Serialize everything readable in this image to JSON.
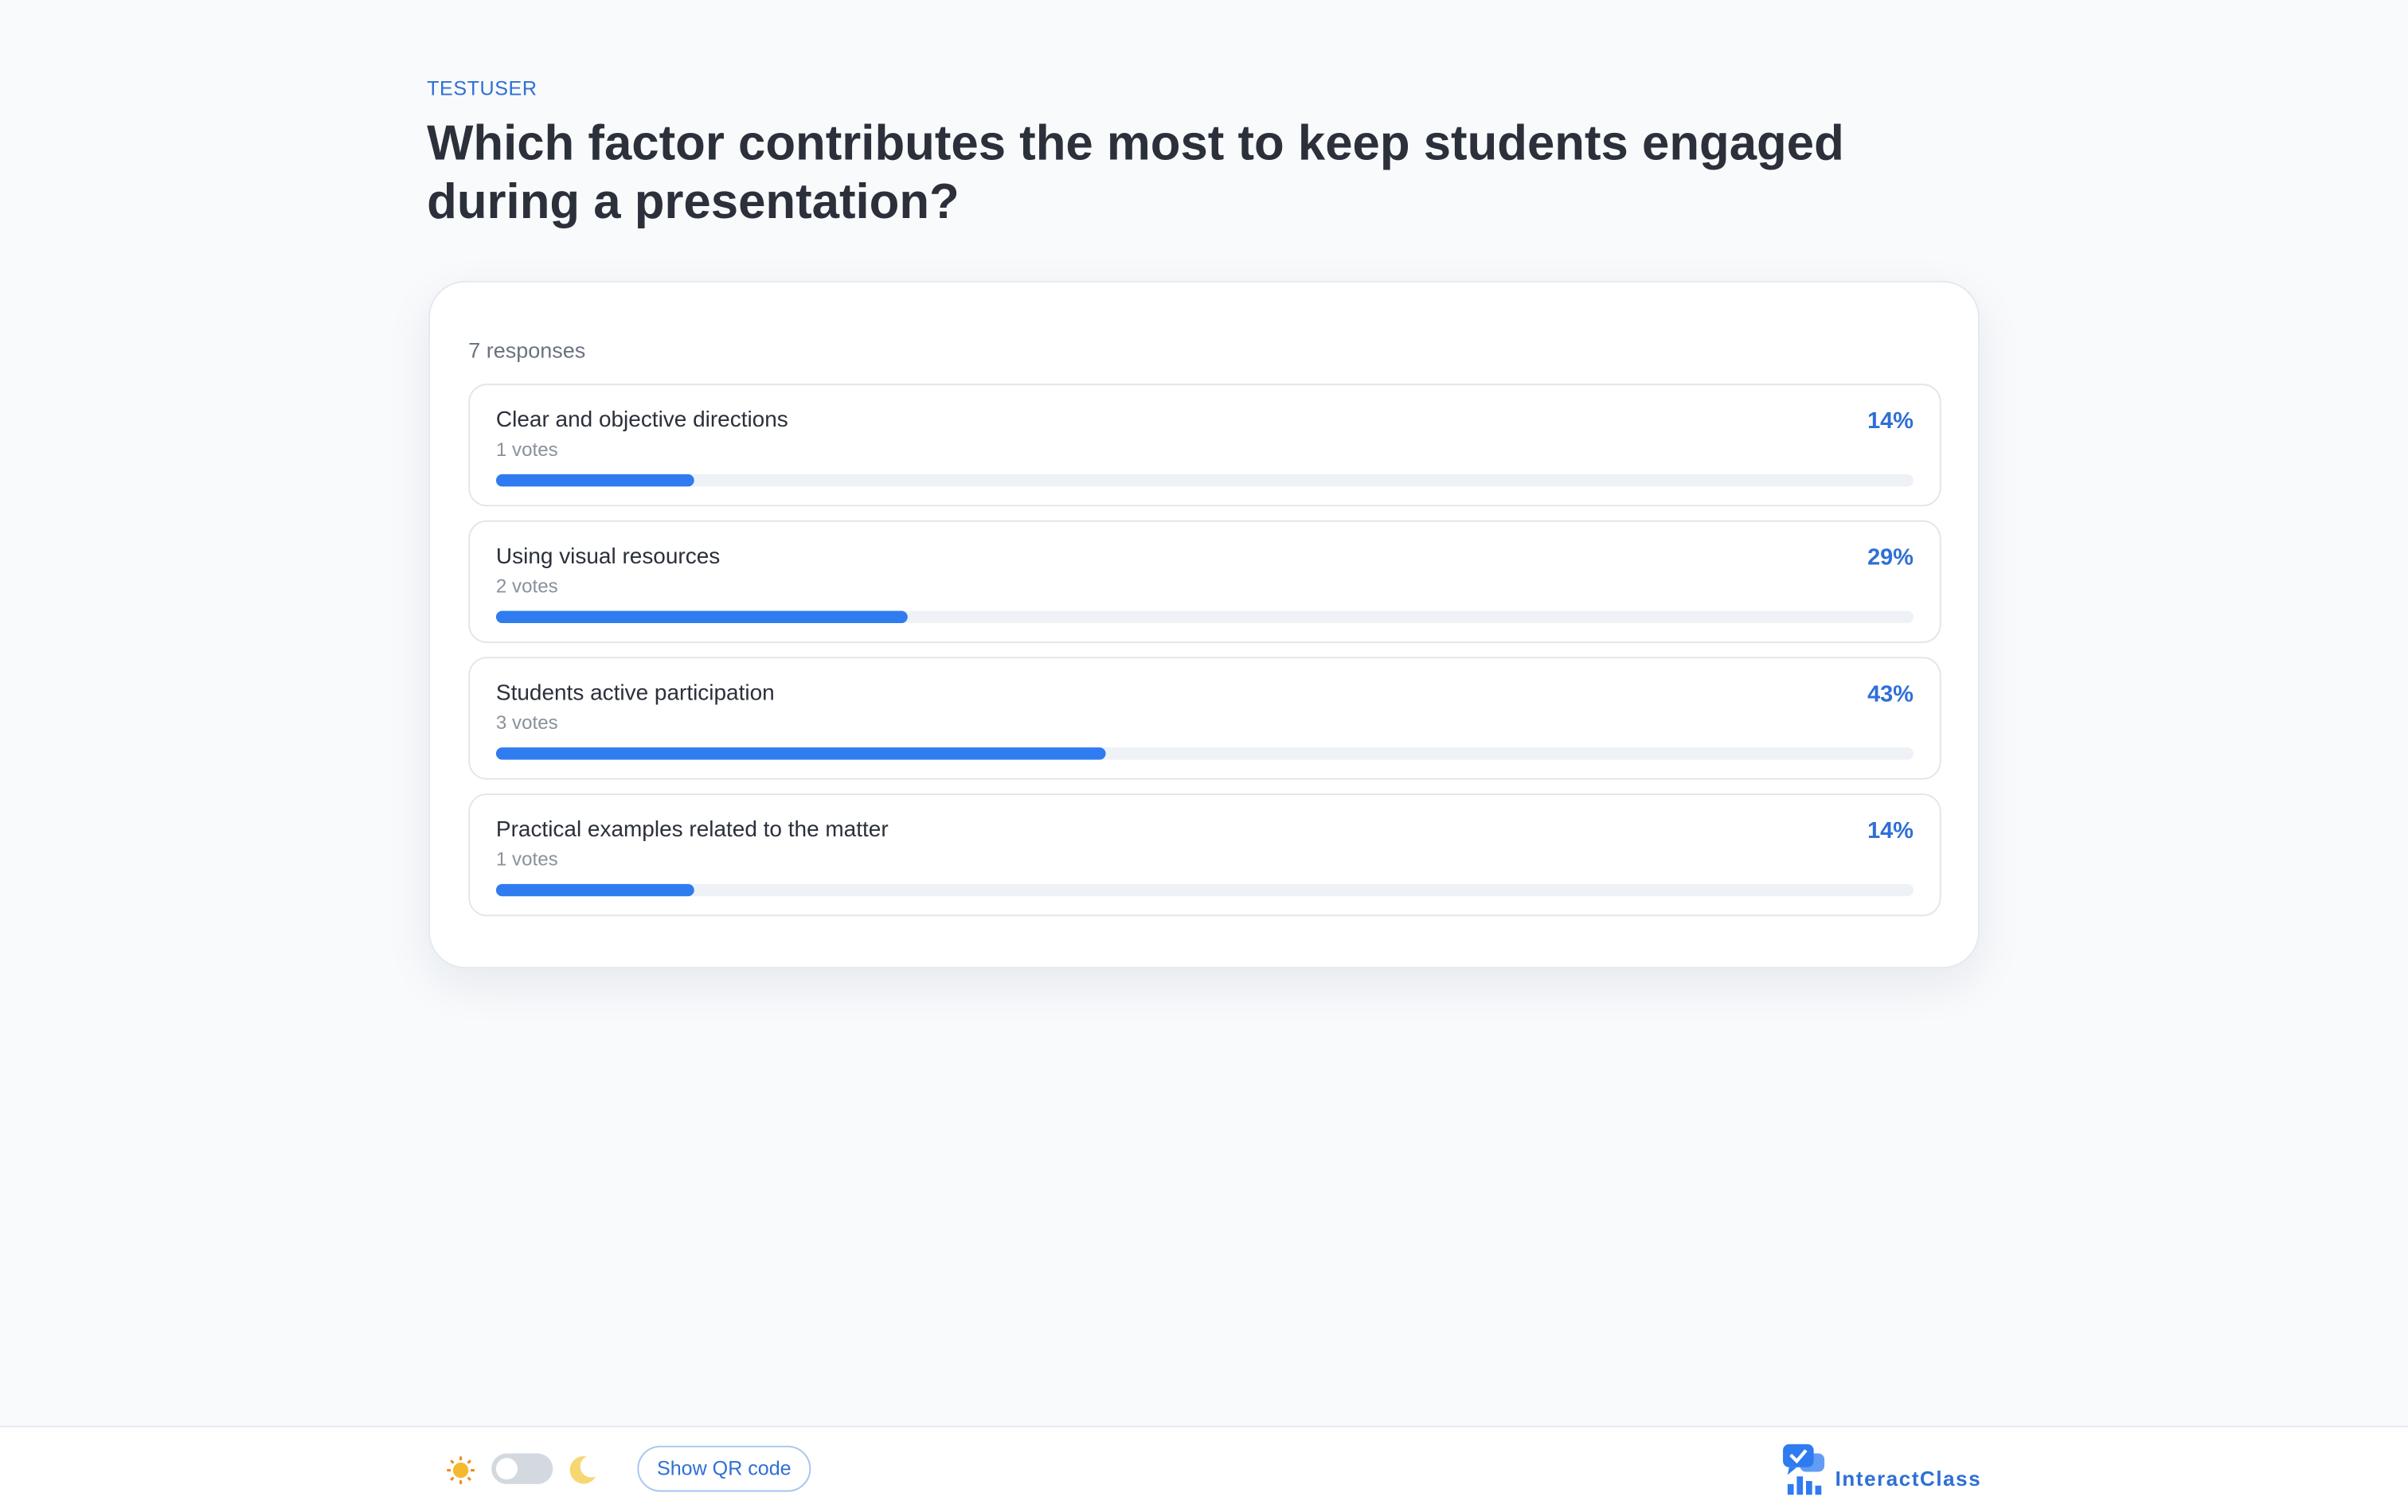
{
  "header": {
    "username": "TESTUSER",
    "question": "Which factor contributes the most to keep students engaged during a presentation?"
  },
  "poll": {
    "responses_label": "7 responses",
    "xlim": [
      0,
      100
    ],
    "options": [
      {
        "label": "Clear and objective directions",
        "votes_label": "1 votes",
        "percent_label": "14%",
        "percent": 14
      },
      {
        "label": "Using visual resources",
        "votes_label": "2 votes",
        "percent_label": "29%",
        "percent": 29
      },
      {
        "label": "Students active participation",
        "votes_label": "3 votes",
        "percent_label": "43%",
        "percent": 43
      },
      {
        "label": "Practical examples related to the matter",
        "votes_label": "1 votes",
        "percent_label": "14%",
        "percent": 14
      }
    ]
  },
  "footer": {
    "qr_button": "Show QR code",
    "brand": "InteractClass"
  }
}
